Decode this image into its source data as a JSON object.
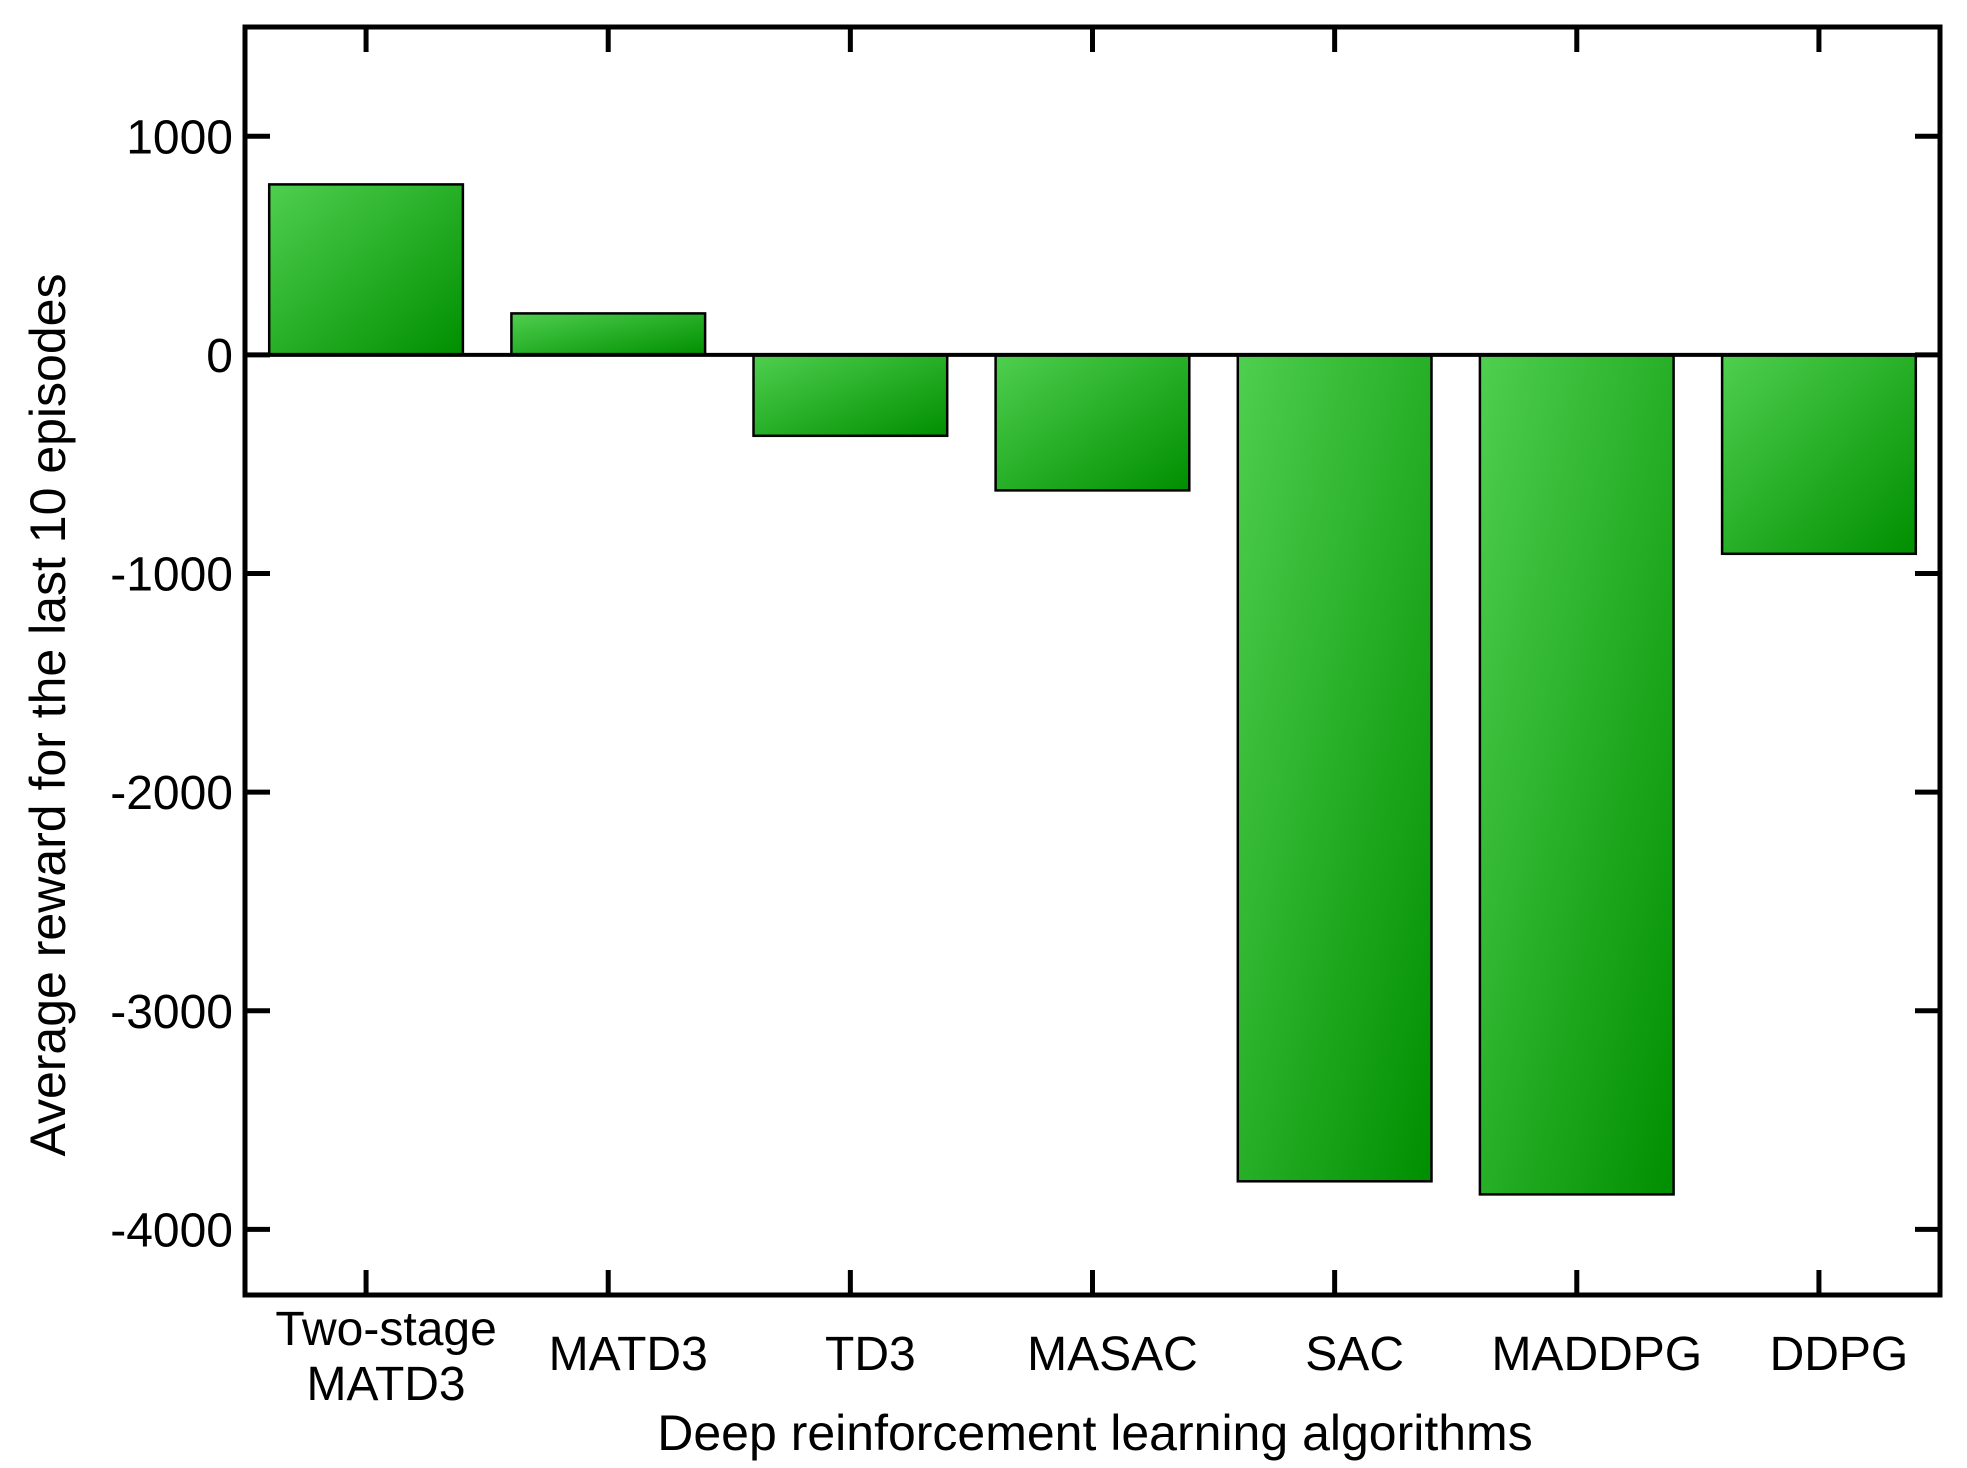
{
  "chart_data": {
    "type": "bar",
    "categories": [
      [
        "Two-stage",
        "MATD3"
      ],
      [
        "MATD3"
      ],
      [
        "TD3"
      ],
      [
        "MASAC"
      ],
      [
        "SAC"
      ],
      [
        "MADDPG"
      ],
      [
        "DDPG"
      ]
    ],
    "values": [
      780,
      190,
      -370,
      -620,
      -3780,
      -3840,
      -910
    ],
    "xlabel": "Deep reinforcement learning algorithms",
    "ylabel": "Average reward for the last 10 episodes",
    "ylim": [
      -4300,
      1500
    ],
    "yticks": [
      1000,
      0,
      -1000,
      -2000,
      -3000,
      -4000
    ],
    "ytick_labels": [
      "1000",
      "0",
      "-1000",
      "-2000",
      "-3000",
      "-4000"
    ],
    "grid": false,
    "zero_line": true,
    "colors": {
      "bar_light": "#4fcf4f",
      "bar_dark": "#008f00",
      "axis": "#000000"
    }
  }
}
